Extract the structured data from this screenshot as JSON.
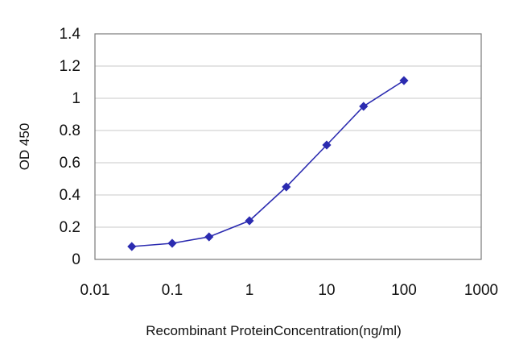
{
  "chart_data": {
    "type": "line",
    "title": "",
    "xlabel": "Recombinant ProteinConcentration(ng/ml)",
    "ylabel": "OD 450",
    "x_scale": "log",
    "xlim": [
      0.01,
      1000
    ],
    "ylim": [
      0,
      1.4
    ],
    "x_ticks": [
      "0.01",
      "0.1",
      "1",
      "10",
      "100",
      "1000"
    ],
    "y_ticks": [
      "0",
      "0.2",
      "0.4",
      "0.6",
      "0.8",
      "1",
      "1.2",
      "1.4"
    ],
    "grid": "horizontal",
    "legend": "none",
    "series": [
      {
        "x": [
          0.03,
          0.1,
          0.3,
          1,
          3,
          10,
          30,
          100
        ],
        "y": [
          0.08,
          0.1,
          0.14,
          0.24,
          0.45,
          0.71,
          0.95,
          1.11
        ],
        "color": "#2b2bb0"
      }
    ]
  }
}
